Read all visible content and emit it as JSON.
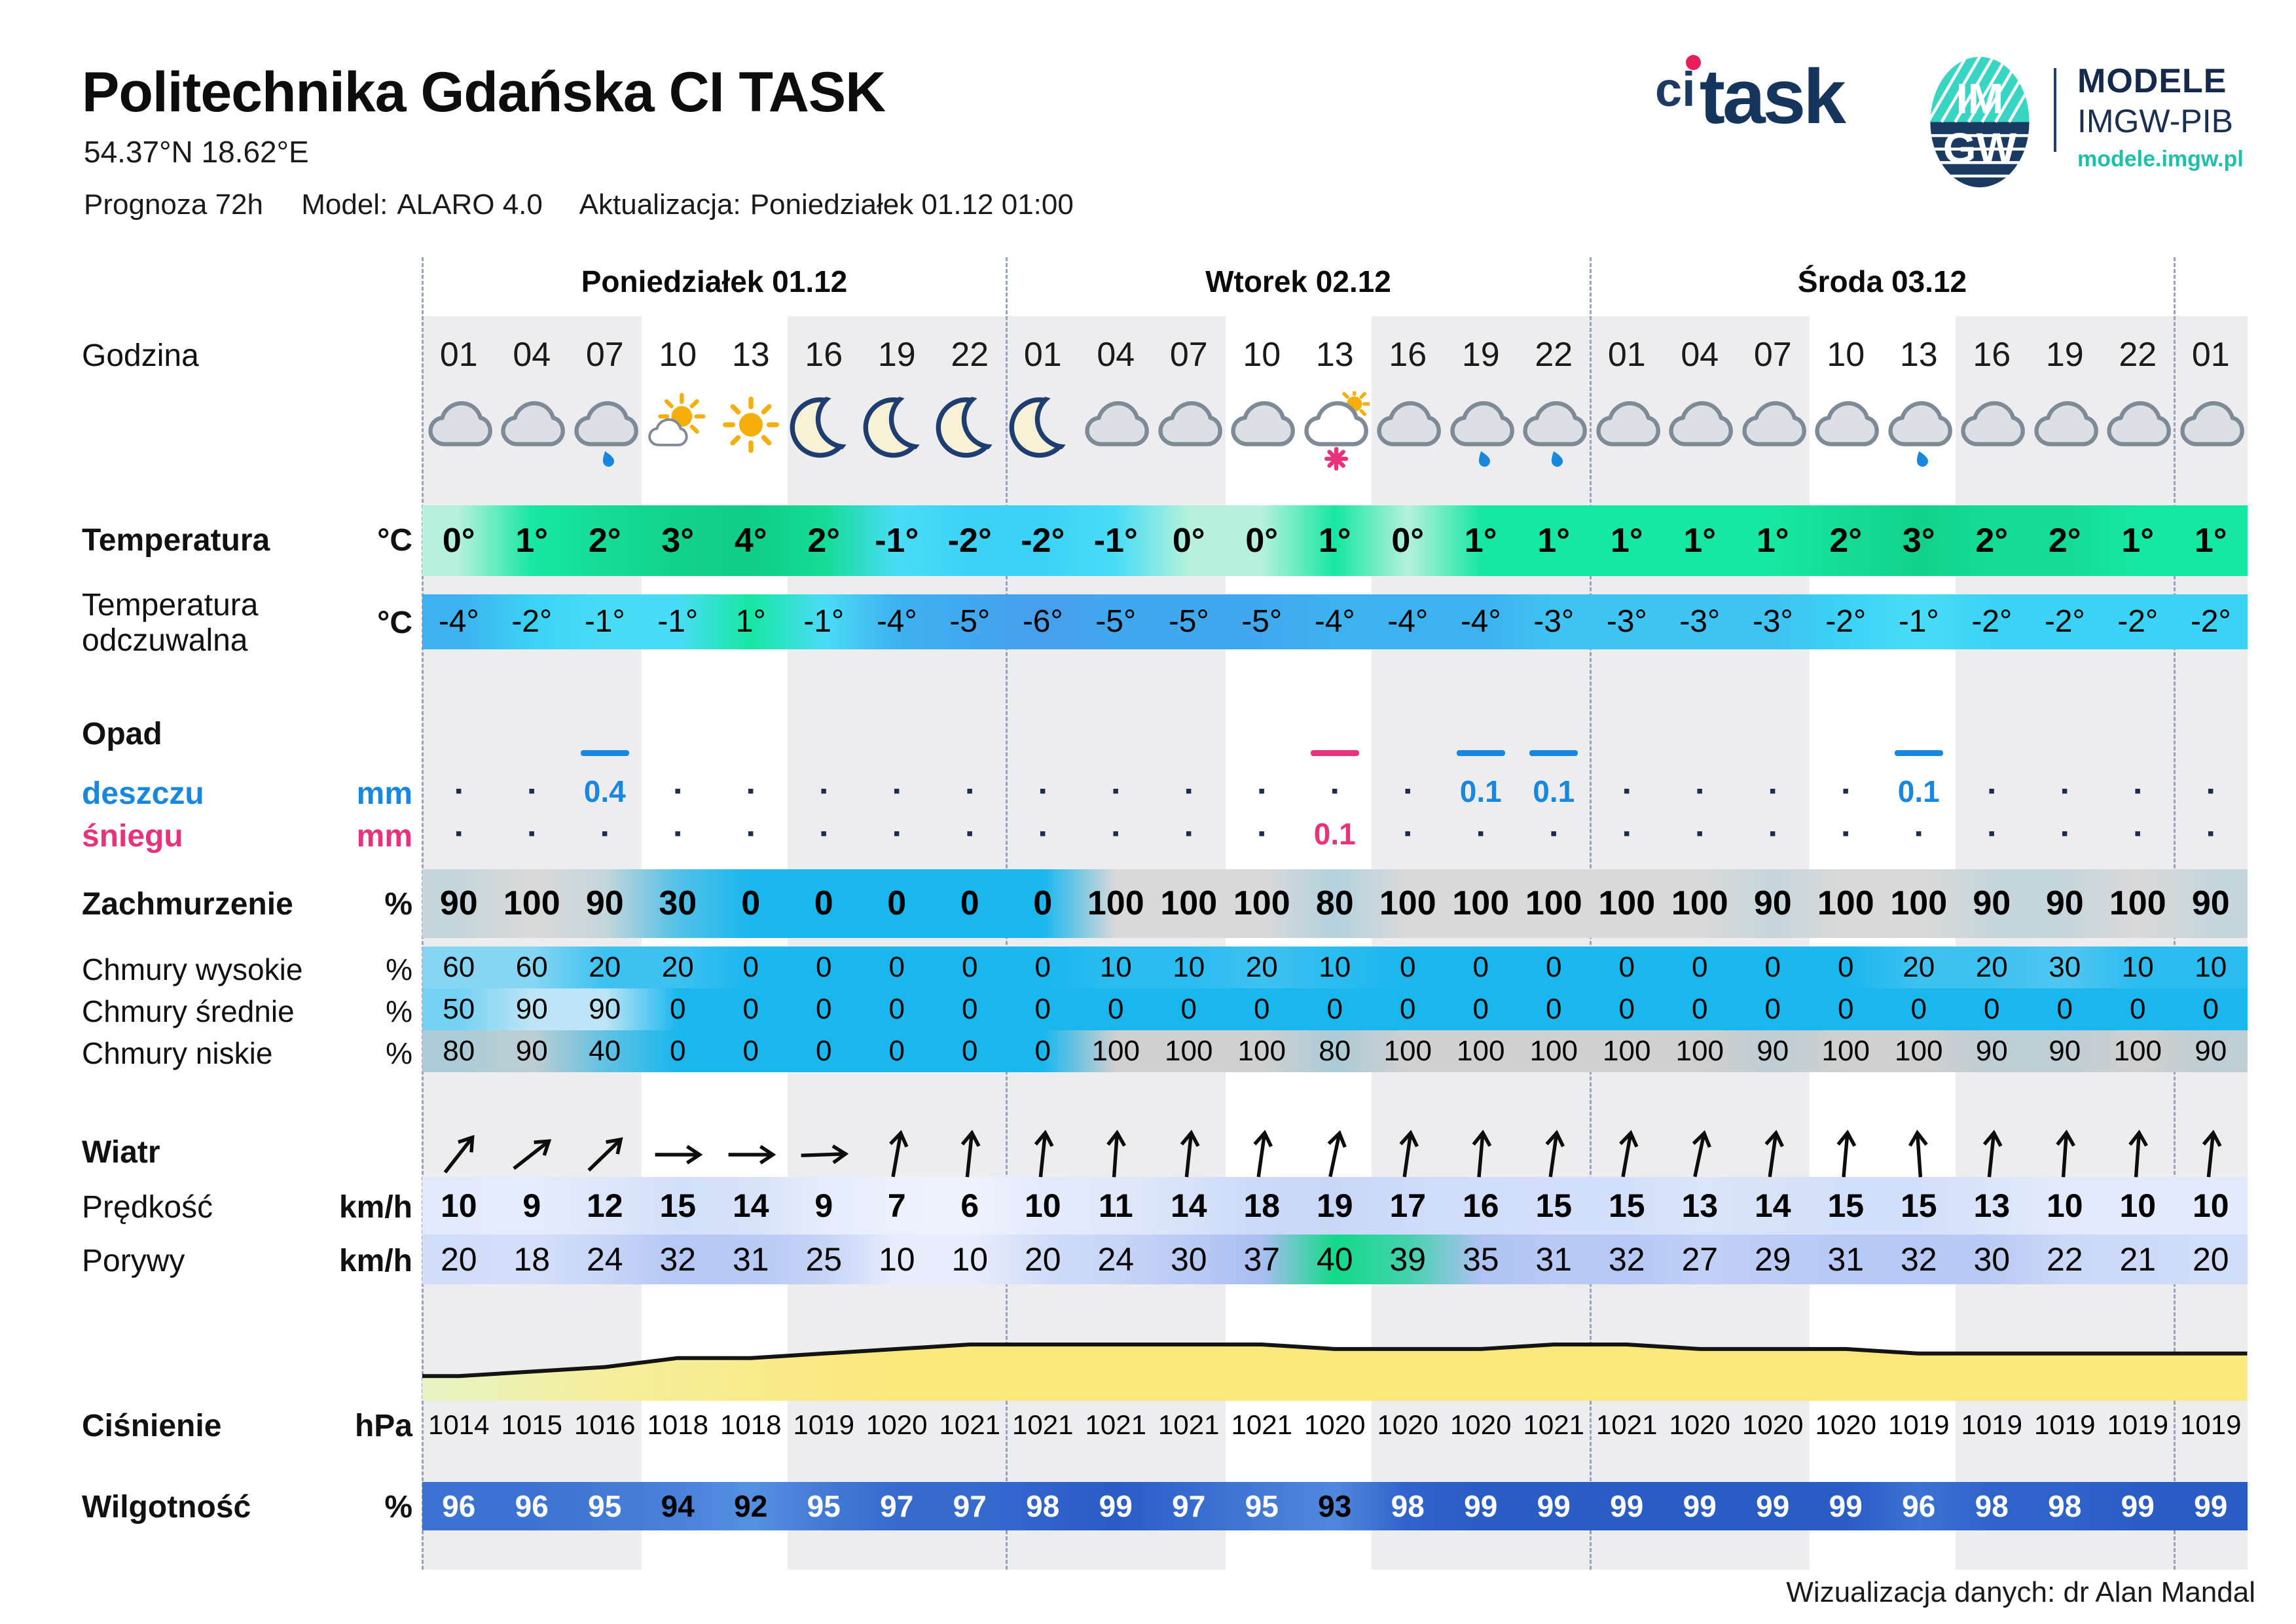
{
  "header": {
    "title": "Politechnika Gdańska CI TASK",
    "coordinates": "54.37°N  18.62°E",
    "meta": {
      "prognoza": "Prognoza 72h",
      "model_label": "Model:",
      "model": "ALARO 4.0",
      "update_label": "Aktualizacja:",
      "update": "Poniedziałek 01.12 01:00"
    }
  },
  "logos": {
    "citask": {
      "ci": "ci",
      "task": "task"
    },
    "imgw": {
      "top": "IM",
      "bottom": "GW"
    },
    "modele": {
      "line1": "MODELE",
      "line2": "IMGW-PIB",
      "line3": "modele.imgw.pl"
    }
  },
  "row_labels": {
    "godzina": "Godzina",
    "temperatura": {
      "label": "Temperatura",
      "unit": "°C"
    },
    "odczuwalna": {
      "label1": "Temperatura",
      "label2": "odczuwalna",
      "unit": "°C"
    },
    "opad": "Opad",
    "deszczu": {
      "label": "deszczu",
      "unit": "mm"
    },
    "sniegu": {
      "label": "śniegu",
      "unit": "mm"
    },
    "zachmurzenie": {
      "label": "Zachmurzenie",
      "unit": "%"
    },
    "chmury_wysokie": {
      "label": "Chmury wysokie",
      "unit": "%"
    },
    "chmury_srednie": {
      "label": "Chmury średnie",
      "unit": "%"
    },
    "chmury_niskie": {
      "label": "Chmury niskie",
      "unit": "%"
    },
    "wiatr": "Wiatr",
    "predkosc": {
      "label": "Prędkość",
      "unit": "km/h"
    },
    "porywy": {
      "label": "Porywy",
      "unit": "km/h"
    },
    "cisnienie": {
      "label": "Ciśnienie",
      "unit": "hPa"
    },
    "wilgotnosc": {
      "label": "Wilgotność",
      "unit": "%"
    }
  },
  "colors": {
    "rain": "#1787e0",
    "snow": "#e8327c",
    "sky_blue": "#19b7ee",
    "teal": "#1fc0ab",
    "navy": "#15355d",
    "gust_green": "#12da89"
  },
  "chart_data": {
    "type": "table",
    "title": "Prognoza 72h — Model ALARO 4.0 — Politechnika Gdańska CI TASK",
    "days": [
      {
        "label": "Poniedziałek 01.12",
        "start": 0,
        "span": 8
      },
      {
        "label": "Wtorek 02.12",
        "start": 8,
        "span": 8
      },
      {
        "label": "Środa 03.12",
        "start": 16,
        "span": 8
      }
    ],
    "hours": [
      "01",
      "04",
      "07",
      "10",
      "13",
      "16",
      "19",
      "22",
      "01",
      "04",
      "07",
      "10",
      "13",
      "16",
      "19",
      "22",
      "01",
      "04",
      "07",
      "10",
      "13",
      "16",
      "19",
      "22",
      "01"
    ],
    "icons": [
      "cloud",
      "cloud",
      "cloud-rain",
      "sun-small-cloud",
      "sun",
      "moon",
      "moon",
      "moon",
      "moon",
      "cloud",
      "cloud",
      "cloud",
      "cloud-sun-snow",
      "cloud",
      "cloud-rain",
      "cloud-rain",
      "cloud",
      "cloud",
      "cloud",
      "cloud",
      "cloud-rain",
      "cloud",
      "cloud",
      "cloud",
      "cloud"
    ],
    "wind_direction_deg": [
      38,
      52,
      46,
      90,
      90,
      88,
      10,
      6,
      6,
      4,
      6,
      8,
      12,
      8,
      5,
      8,
      10,
      12,
      8,
      5,
      -4,
      6,
      4,
      4,
      6
    ],
    "no_precip_symbol": "▪",
    "series": {
      "temperatura_c": [
        0,
        1,
        2,
        3,
        4,
        2,
        -1,
        -2,
        -2,
        -1,
        0,
        0,
        1,
        0,
        1,
        1,
        1,
        1,
        1,
        2,
        3,
        2,
        2,
        1,
        1
      ],
      "temperatura_odczuwalna_c": [
        -4,
        -2,
        -1,
        -1,
        1,
        -1,
        -4,
        -5,
        -6,
        -5,
        -5,
        -5,
        -4,
        -4,
        -4,
        -3,
        -3,
        -3,
        -3,
        -2,
        -1,
        -2,
        -2,
        -2,
        -2
      ],
      "opad_deszczu_mm": [
        0,
        0,
        0.4,
        0,
        0,
        0,
        0,
        0,
        0,
        0,
        0,
        0,
        0,
        0,
        0.1,
        0.1,
        0,
        0,
        0,
        0,
        0.1,
        0,
        0,
        0,
        0
      ],
      "opad_sniegu_mm": [
        0,
        0,
        0,
        0,
        0,
        0,
        0,
        0,
        0,
        0,
        0,
        0,
        0.1,
        0,
        0,
        0,
        0,
        0,
        0,
        0,
        0,
        0,
        0,
        0,
        0
      ],
      "zachmurzenie_pct": [
        90,
        100,
        90,
        30,
        0,
        0,
        0,
        0,
        0,
        100,
        100,
        100,
        80,
        100,
        100,
        100,
        100,
        100,
        90,
        100,
        100,
        90,
        90,
        100,
        90
      ],
      "chmury_wysokie_pct": [
        60,
        60,
        20,
        20,
        0,
        0,
        0,
        0,
        0,
        10,
        10,
        20,
        10,
        0,
        0,
        0,
        0,
        0,
        0,
        0,
        20,
        20,
        30,
        10,
        10
      ],
      "chmury_srednie_pct": [
        50,
        90,
        90,
        0,
        0,
        0,
        0,
        0,
        0,
        0,
        0,
        0,
        0,
        0,
        0,
        0,
        0,
        0,
        0,
        0,
        0,
        0,
        0,
        0,
        0
      ],
      "chmury_niskie_pct": [
        80,
        90,
        40,
        0,
        0,
        0,
        0,
        0,
        0,
        100,
        100,
        100,
        80,
        100,
        100,
        100,
        100,
        100,
        90,
        100,
        100,
        90,
        90,
        100,
        90
      ],
      "predkosc_kmh": [
        10,
        9,
        12,
        15,
        14,
        9,
        7,
        6,
        10,
        11,
        14,
        18,
        19,
        17,
        16,
        15,
        15,
        13,
        14,
        15,
        15,
        13,
        10,
        10,
        10
      ],
      "porywy_kmh": [
        20,
        18,
        24,
        32,
        31,
        25,
        10,
        10,
        20,
        24,
        30,
        37,
        40,
        39,
        35,
        31,
        32,
        27,
        29,
        31,
        32,
        30,
        22,
        21,
        20
      ],
      "cisnienie_hpa": [
        1014,
        1015,
        1016,
        1018,
        1018,
        1019,
        1020,
        1021,
        1021,
        1021,
        1021,
        1021,
        1020,
        1020,
        1020,
        1021,
        1021,
        1020,
        1020,
        1020,
        1019,
        1019,
        1019,
        1019,
        1019
      ],
      "wilgotnosc_pct": [
        96,
        96,
        95,
        94,
        92,
        95,
        97,
        97,
        98,
        99,
        97,
        95,
        93,
        98,
        99,
        99,
        99,
        99,
        99,
        99,
        96,
        98,
        98,
        99,
        99
      ]
    }
  },
  "footer": "Wizualizacja danych: dr Alan Mandal"
}
